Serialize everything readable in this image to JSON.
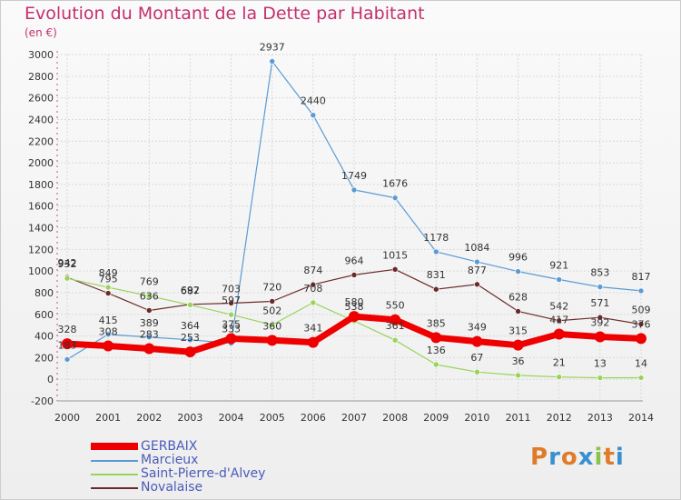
{
  "title": "Evolution du Montant de la Dette par Habitant",
  "subtitle": "(en €)",
  "logo": {
    "letters": [
      "P",
      "r",
      "o",
      "x",
      "i",
      "t",
      "i"
    ],
    "colors": [
      "#e07b2a",
      "#3a8fd0",
      "#e07b2a",
      "#3a8fd0",
      "#8bc34a",
      "#e07b2a",
      "#3a8fd0"
    ]
  },
  "chart_data": {
    "type": "line",
    "title": "Evolution du Montant de la Dette par Habitant",
    "ylabel": "(en €)",
    "xlabel": "",
    "x": [
      "2000",
      "2001",
      "2002",
      "2003",
      "2004",
      "2005",
      "2006",
      "2007",
      "2008",
      "2009",
      "2010",
      "2011",
      "2012",
      "2013",
      "2014"
    ],
    "ylim": [
      -200,
      3000
    ],
    "yticks": [
      "-200",
      "0",
      "200",
      "400",
      "600",
      "800",
      "1000",
      "1200",
      "1400",
      "1600",
      "1800",
      "2000",
      "2200",
      "2400",
      "2600",
      "2800",
      "3000"
    ],
    "legend_position": "bottom-left",
    "series": [
      {
        "name": "GERBAIX",
        "color": "#ee0000",
        "values": [
          328,
          308,
          283,
          253,
          375,
          360,
          341,
          580,
          550,
          385,
          349,
          315,
          417,
          392,
          376
        ]
      },
      {
        "name": "Marcieux",
        "color": "#5b9bd5",
        "values": [
          183,
          415,
          389,
          364,
          333,
          2937,
          2440,
          1749,
          1676,
          1178,
          1084,
          996,
          921,
          853,
          817
        ]
      },
      {
        "name": "Saint-Pierre-d'Alvey",
        "color": "#99d35a",
        "values": [
          932,
          849,
          769,
          687,
          597,
          502,
          708,
          538,
          361,
          136,
          67,
          36,
          21,
          13,
          14
        ]
      },
      {
        "name": "Novalaise",
        "color": "#6b2a2a",
        "values": [
          942,
          795,
          636,
          692,
          703,
          720,
          874,
          964,
          1015,
          831,
          877,
          628,
          542,
          571,
          509
        ]
      }
    ]
  }
}
